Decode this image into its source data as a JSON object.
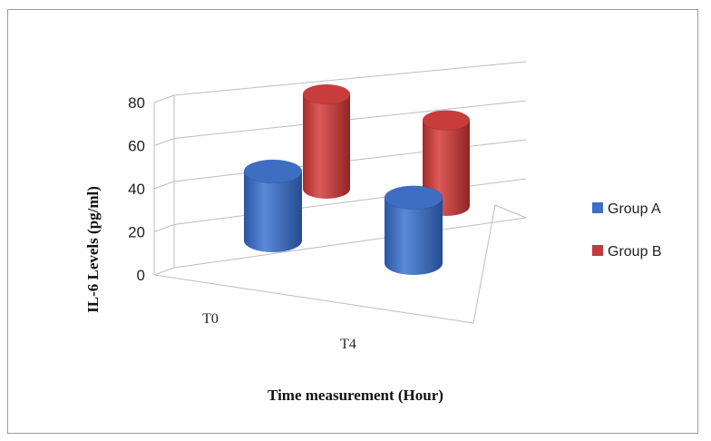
{
  "chart_data": {
    "type": "bar",
    "style": "3d-cylinder",
    "categories": [
      "T0",
      "T4"
    ],
    "series": [
      {
        "name": "Group A",
        "values": [
          40,
          38
        ],
        "color": "#3e6fc0"
      },
      {
        "name": "Group B",
        "values": [
          65,
          59
        ],
        "color": "#c23a3a"
      }
    ],
    "ylim": [
      0,
      80
    ],
    "yticks": [
      "0",
      "20",
      "40",
      "60",
      "80"
    ],
    "xlabel": "Time measurement (Hour)",
    "ylabel": "IL-6 Levels (pg/ml)",
    "legend_position": "right",
    "grid": true
  }
}
